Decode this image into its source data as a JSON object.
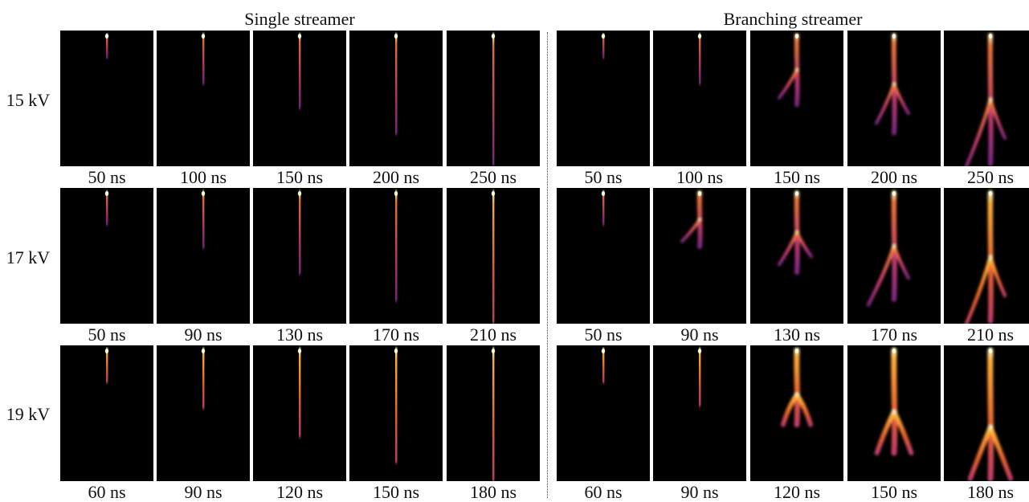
{
  "figure": {
    "groups": [
      {
        "title": "Single streamer",
        "rows": [
          {
            "voltage": "15 kV",
            "frames": [
              {
                "time": "50 ns",
                "progress": 0.17,
                "branching": 0,
                "brightness": 0.55
              },
              {
                "time": "100 ns",
                "progress": 0.37,
                "branching": 0,
                "brightness": 0.6
              },
              {
                "time": "150 ns",
                "progress": 0.56,
                "branching": 0,
                "brightness": 0.65
              },
              {
                "time": "200 ns",
                "progress": 0.76,
                "branching": 0,
                "brightness": 0.7
              },
              {
                "time": "250 ns",
                "progress": 1.0,
                "branching": 0,
                "brightness": 0.75
              }
            ]
          },
          {
            "voltage": "17 kV",
            "frames": [
              {
                "time": "50 ns",
                "progress": 0.24,
                "branching": 0,
                "brightness": 0.65
              },
              {
                "time": "90 ns",
                "progress": 0.42,
                "branching": 0,
                "brightness": 0.7
              },
              {
                "time": "130 ns",
                "progress": 0.62,
                "branching": 0,
                "brightness": 0.75
              },
              {
                "time": "170 ns",
                "progress": 0.83,
                "branching": 0,
                "brightness": 0.8
              },
              {
                "time": "210 ns",
                "progress": 1.0,
                "branching": 0,
                "brightness": 0.85
              }
            ]
          },
          {
            "voltage": "19 kV",
            "frames": [
              {
                "time": "60 ns",
                "progress": 0.24,
                "branching": 0,
                "brightness": 0.85
              },
              {
                "time": "90 ns",
                "progress": 0.44,
                "branching": 0,
                "brightness": 0.9
              },
              {
                "time": "120 ns",
                "progress": 0.66,
                "branching": 0,
                "brightness": 0.95
              },
              {
                "time": "150 ns",
                "progress": 0.86,
                "branching": 0,
                "brightness": 1.0
              },
              {
                "time": "180 ns",
                "progress": 1.0,
                "branching": 0,
                "brightness": 1.0
              }
            ]
          }
        ]
      },
      {
        "title": "Branching streamer",
        "rows": [
          {
            "voltage": "15 kV",
            "frames": [
              {
                "time": "50 ns",
                "progress": 0.17,
                "branching": 0,
                "brightness": 0.55
              },
              {
                "time": "100 ns",
                "progress": 0.37,
                "branching": 0,
                "brightness": 0.6
              },
              {
                "time": "150 ns",
                "progress": 0.54,
                "branching": 1,
                "brightness": 0.65
              },
              {
                "time": "200 ns",
                "progress": 0.76,
                "branching": 2,
                "brightness": 0.7
              },
              {
                "time": "250 ns",
                "progress": 1.0,
                "branching": 3,
                "brightness": 0.75
              }
            ]
          },
          {
            "voltage": "17 kV",
            "frames": [
              {
                "time": "50 ns",
                "progress": 0.24,
                "branching": 0,
                "brightness": 0.65
              },
              {
                "time": "90 ns",
                "progress": 0.42,
                "branching": 1,
                "brightness": 0.7
              },
              {
                "time": "130 ns",
                "progress": 0.62,
                "branching": 2,
                "brightness": 0.75
              },
              {
                "time": "170 ns",
                "progress": 0.83,
                "branching": 3,
                "brightness": 0.8
              },
              {
                "time": "210 ns",
                "progress": 1.0,
                "branching": 3,
                "brightness": 0.85
              }
            ]
          },
          {
            "voltage": "19 kV",
            "frames": [
              {
                "time": "60 ns",
                "progress": 0.24,
                "branching": 0,
                "brightness": 0.85
              },
              {
                "time": "90 ns",
                "progress": 0.42,
                "branching": 0,
                "brightness": 0.9
              },
              {
                "time": "120 ns",
                "progress": 0.58,
                "branching": 4,
                "brightness": 0.95
              },
              {
                "time": "150 ns",
                "progress": 0.8,
                "branching": 4,
                "brightness": 1.0
              },
              {
                "time": "180 ns",
                "progress": 1.0,
                "branching": 4,
                "brightness": 1.0
              }
            ]
          }
        ]
      }
    ]
  }
}
